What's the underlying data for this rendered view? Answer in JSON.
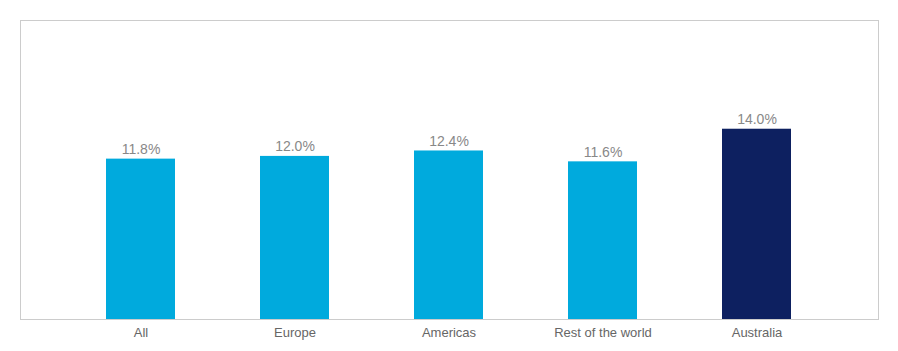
{
  "chart_data": {
    "type": "bar",
    "categories": [
      "All",
      "Europe",
      "Americas",
      "Rest of the world",
      "Australia"
    ],
    "values": [
      11.8,
      12.0,
      12.4,
      11.6,
      14.0
    ],
    "value_labels": [
      "11.8%",
      "12.0%",
      "12.4%",
      "11.6%",
      "14.0%"
    ],
    "colors": [
      "#00AADD",
      "#00AADD",
      "#00AADD",
      "#00AADD",
      "#0D2060"
    ],
    "ylim": [
      0,
      22
    ],
    "grid": false,
    "data_labels": true,
    "tick_labels": "x"
  }
}
